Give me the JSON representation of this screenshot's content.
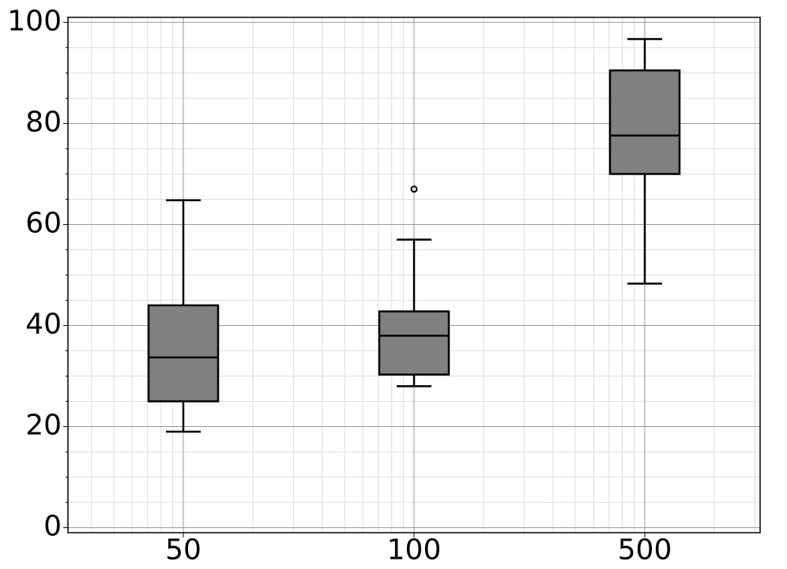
{
  "chart_data": {
    "type": "box",
    "title": "",
    "xlabel": "",
    "ylabel": "",
    "ylim": [
      -1,
      101
    ],
    "y_ticks": [
      "0",
      "20",
      "40",
      "60",
      "80",
      "100"
    ],
    "categories": [
      "50",
      "100",
      "500"
    ],
    "boxes": [
      {
        "category": "50",
        "whisker_low": 19,
        "q1": 25,
        "median": 33.7,
        "q3": 44,
        "whisker_high": 64.8,
        "outliers": []
      },
      {
        "category": "100",
        "whisker_low": 28,
        "q1": 30.3,
        "median": 38,
        "q3": 42.8,
        "whisker_high": 57,
        "outliers": [
          67
        ]
      },
      {
        "category": "500",
        "whisker_low": 48.3,
        "q1": 70,
        "median": 77.6,
        "q3": 90.5,
        "whisker_high": 96.7,
        "outliers": []
      }
    ],
    "grid": true,
    "minor_grid": true,
    "box_color": "#808080",
    "line_color": "#000000",
    "major_grid_color": "#999999",
    "minor_grid_color": "#dddddd"
  }
}
